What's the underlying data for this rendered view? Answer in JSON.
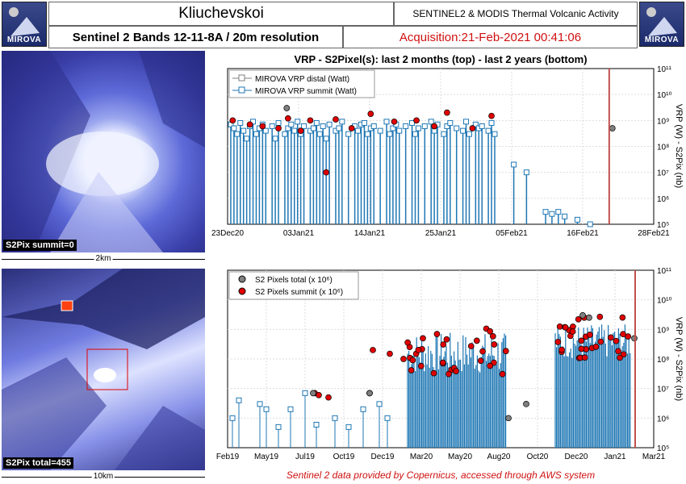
{
  "header": {
    "volcano": "Kliuchevskoi",
    "system": "SENTINEL2 & MODIS Thermal Volcanic Activity",
    "bands": "Sentinel 2 Bands 12-11-8A / 20m resolution",
    "acquisition": "Acquisition:21-Feb-2021 00:41:06",
    "logo_text": "MIROVA"
  },
  "images": {
    "summit_label": "S2Pix summit=0",
    "summit_scale": "2km",
    "total_label": "S2Pix total=455",
    "total_scale": "10km"
  },
  "footer": {
    "credit": "Sentinel 2 data provided by Copernicus, accessed through AWS system"
  },
  "colors": {
    "distal": "#808080",
    "summit": "#1f77b4",
    "pix_total": "#808080",
    "pix_summit": "#e00000",
    "acq_line": "#c0504d",
    "acq_text": "#d01010"
  },
  "chart_data": [
    {
      "type": "scatter",
      "title": "VRP - S2Pixel(s): last 2 months (top) - last 2 years (bottom)",
      "ylabel": "VRP (W) - S2Pix (nb)",
      "yscale": "log",
      "ylim": [
        100000,
        100000000000
      ],
      "y_ticks": [
        "10⁵",
        "10⁶",
        "10⁷",
        "10⁸",
        "10⁹",
        "10¹⁰",
        "10¹¹"
      ],
      "xlim": [
        "2020-12-23",
        "2021-02-28"
      ],
      "x_ticks": [
        "23Dec20",
        "03Jan21",
        "14Jan21",
        "25Jan21",
        "05Feb21",
        "16Feb21",
        "28Feb21"
      ],
      "legend": [
        "MIROVA VRP distal (Watt)",
        "MIROVA VRP summit (Watt)"
      ],
      "legend_position": "top-left",
      "grid": true,
      "acquisition_date": "2021-02-21",
      "series": [
        {
          "name": "MIROVA VRP summit (Watt)",
          "x_days": [
            0.5,
            1,
            1.5,
            2,
            2.5,
            3,
            3.5,
            4,
            4.5,
            5,
            5.5,
            6,
            7,
            7.5,
            8,
            9,
            9.5,
            10,
            10.5,
            11,
            11.5,
            12,
            13,
            13.5,
            14,
            14.5,
            15,
            15.5,
            16,
            17,
            17.5,
            18,
            19,
            20,
            20.5,
            21,
            21.5,
            22,
            22.5,
            23,
            24,
            25,
            25.5,
            26,
            26.5,
            27,
            28,
            29,
            29.5,
            30,
            31,
            32,
            32.5,
            33,
            34,
            34.5,
            35,
            36,
            37,
            37.5,
            38,
            39,
            39.5,
            40,
            41,
            41.5,
            42,
            45,
            47,
            50,
            51,
            52,
            53,
            55,
            57
          ],
          "y": [
            700000000,
            500000000,
            300000000,
            800000000,
            400000000,
            200000000,
            600000000,
            900000000,
            300000000,
            500000000,
            700000000,
            400000000,
            600000000,
            200000000,
            800000000,
            300000000,
            500000000,
            700000000,
            400000000,
            900000000,
            300000000,
            600000000,
            400000000,
            500000000,
            800000000,
            300000000,
            600000000,
            200000000,
            700000000,
            400000000,
            500000000,
            900000000,
            300000000,
            600000000,
            400000000,
            700000000,
            800000000,
            300000000,
            500000000,
            600000000,
            400000000,
            900000000,
            300000000,
            500000000,
            700000000,
            400000000,
            600000000,
            800000000,
            300000000,
            500000000,
            600000000,
            900000000,
            400000000,
            700000000,
            300000000,
            600000000,
            800000000,
            500000000,
            400000000,
            900000000,
            300000000,
            700000000,
            500000000,
            600000000,
            400000000,
            800000000,
            300000000,
            20000000,
            10000000,
            300000,
            250000,
            300000,
            200000,
            150000,
            100000
          ]
        },
        {
          "name": "S2 Pixels summit",
          "x_days": [
            0.8,
            3.5,
            5.5,
            8,
            9.5,
            11.5,
            13,
            15.5,
            17,
            19.5,
            22.5,
            26.2,
            29.7,
            32.5,
            34.5,
            38.5,
            41.5
          ],
          "y": [
            1000000000,
            700000000,
            600000000,
            500000000,
            1200000000,
            400000000,
            1000000000,
            10000000,
            1100000000,
            500000000,
            1800000000,
            900000000,
            1000000000,
            600000000,
            2000000000,
            500000000,
            1500000000
          ]
        },
        {
          "name": "S2 Pixels total",
          "x_days": [
            9.3,
            60.5
          ],
          "y": [
            3000000000,
            500000000
          ]
        }
      ]
    },
    {
      "type": "scatter",
      "yscale": "log",
      "ylabel": "VRP (W) - S2Pix (nb)",
      "ylim": [
        100000,
        100000000000
      ],
      "y_ticks": [
        "10⁵",
        "10⁶",
        "10⁷",
        "10⁸",
        "10⁹",
        "10¹⁰",
        "10¹¹"
      ],
      "x_ticks": [
        "Feb19",
        "May19",
        "Jul19",
        "Oct19",
        "Dec19",
        "Mar20",
        "May20",
        "Aug20",
        "Oct20",
        "Dec20",
        "Jan21",
        "Mar21"
      ],
      "legend": [
        "S2 Pixels total (x 10⁶)",
        "S2 Pixels summit (x 10⁶)"
      ],
      "legend_position": "top-left",
      "grid": true,
      "acquisition_date": "2021-02-21"
    }
  ]
}
